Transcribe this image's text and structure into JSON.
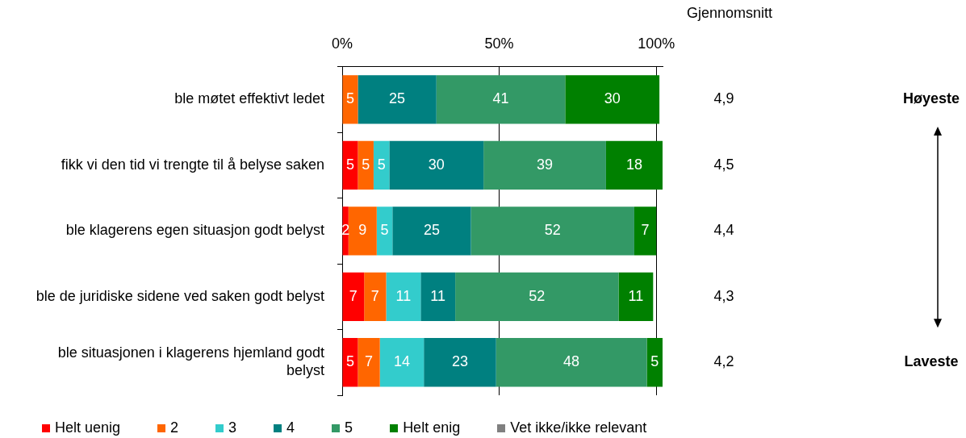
{
  "chart_data": {
    "type": "bar",
    "orientation": "horizontal",
    "stacked": true,
    "categories": [
      "ble møtet effektivt ledet",
      "fikk vi den tid vi trengte til å belyse saken",
      "ble klagerens egen situasjon godt belyst",
      "ble de juridiske sidene ved saken godt belyst",
      "ble situasjonen i klagerens hjemland godt belyst"
    ],
    "series": [
      {
        "name": "Helt uenig",
        "color": "#ff0000",
        "values": [
          null,
          5,
          2,
          7,
          5
        ]
      },
      {
        "name": "2",
        "color": "#ff6600",
        "values": [
          5,
          5,
          9,
          7,
          7
        ]
      },
      {
        "name": "3",
        "color": "#33cccc",
        "values": [
          null,
          5,
          5,
          11,
          14
        ]
      },
      {
        "name": "4",
        "color": "#008080",
        "values": [
          25,
          30,
          25,
          11,
          23
        ]
      },
      {
        "name": "5",
        "color": "#339966",
        "values": [
          41,
          39,
          52,
          52,
          48
        ]
      },
      {
        "name": "Helt enig",
        "color": "#008000",
        "values": [
          30,
          18,
          7,
          11,
          5
        ]
      },
      {
        "name": "Vet ikke/ikke relevant",
        "color": "#808080",
        "values": [
          null,
          null,
          null,
          null,
          null
        ]
      }
    ],
    "xlim": [
      0,
      102
    ],
    "xticks": [
      {
        "value": 0,
        "label": "0%"
      },
      {
        "value": 50,
        "label": "50%"
      },
      {
        "value": 100,
        "label": "100%"
      }
    ],
    "grid": "x",
    "legend": "bottom",
    "data_labels": true,
    "annotations": [
      "Gjennomsnitt",
      "4,9",
      "4,5",
      "4,4",
      "4,3",
      "4,2",
      "Høyeste",
      "Laveste"
    ]
  }
}
